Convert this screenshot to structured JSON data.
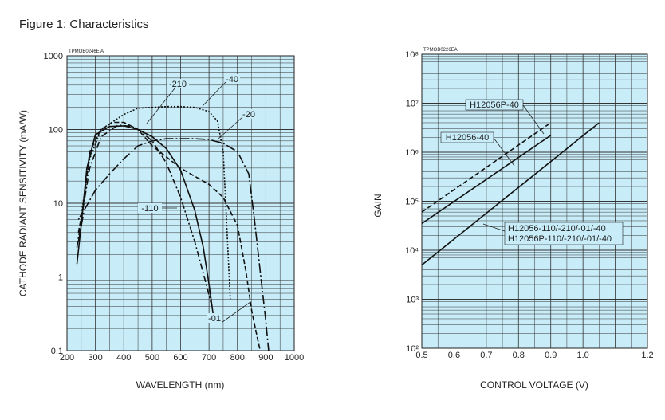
{
  "figure_title": "Figure 1: Characteristics",
  "chart_data": [
    {
      "type": "line",
      "code": "TPMOB0246E A",
      "xlabel": "WAVELENGTH (nm)",
      "ylabel": "CATHODE RADIANT SENSITIVITY (mA/W)",
      "xlim": [
        200,
        1000
      ],
      "ylim": [
        0.1,
        1000
      ],
      "yscale": "log",
      "grid": true,
      "background": "#c8ecf8",
      "x_ticks": [
        "200",
        "300",
        "400",
        "500",
        "600",
        "700",
        "800",
        "900",
        "1000"
      ],
      "y_ticks": [
        "0.1",
        "1",
        "10",
        "100",
        "1000"
      ],
      "series": [
        {
          "name": "-01",
          "style": "solid",
          "x": [
            235,
            250,
            270,
            300,
            350,
            400,
            450,
            500,
            550,
            600,
            650,
            680,
            700,
            715
          ],
          "y": [
            1.5,
            5,
            30,
            85,
            110,
            112,
            100,
            80,
            55,
            28,
            8,
            2.5,
            0.8,
            0.3
          ]
        },
        {
          "name": "-110",
          "style": "dashdot",
          "x": [
            235,
            250,
            280,
            320,
            380,
            430,
            450,
            500,
            550,
            600,
            650,
            690,
            710
          ],
          "y": [
            2.5,
            6,
            30,
            80,
            115,
            110,
            100,
            70,
            35,
            12,
            3,
            0.8,
            0.4
          ]
        },
        {
          "name": "-210",
          "style": "dashed",
          "x": [
            240,
            255,
            280,
            320,
            360,
            400,
            450,
            500,
            600,
            700,
            750,
            800,
            830,
            850,
            870,
            880
          ],
          "y": [
            4,
            8,
            50,
            100,
            125,
            125,
            100,
            60,
            30,
            18,
            12,
            5,
            1.2,
            0.35,
            0.15,
            0.1
          ]
        },
        {
          "name": "-40",
          "style": "dotted",
          "x": [
            240,
            250,
            280,
            320,
            400,
            450,
            500,
            550,
            600,
            650,
            700,
            730,
            750,
            760,
            770,
            775
          ],
          "y": [
            6,
            7,
            40,
            100,
            160,
            195,
            200,
            205,
            205,
            200,
            175,
            130,
            50,
            8,
            1.2,
            0.5
          ]
        },
        {
          "name": "-20",
          "style": "longdash-dot",
          "x": [
            240,
            260,
            300,
            350,
            400,
            450,
            500,
            550,
            600,
            650,
            700,
            750,
            800,
            840,
            860,
            880,
            900,
            910
          ],
          "y": [
            3,
            8,
            15,
            25,
            40,
            60,
            70,
            75,
            75,
            75,
            73,
            65,
            50,
            25,
            6,
            1.2,
            0.25,
            0.1
          ]
        }
      ]
    },
    {
      "type": "line",
      "code": "TPMOB0226EA",
      "xlabel": "CONTROL VOLTAGE (V)",
      "ylabel": "GAIN",
      "xlim": [
        0.5,
        1.2
      ],
      "ylim": [
        100,
        100000000
      ],
      "yscale": "log",
      "grid": true,
      "background": "#c8ecf8",
      "x_ticks": [
        "0.5",
        "0.6",
        "0.7",
        "0.8",
        "0.9",
        "1.0",
        "1.2"
      ],
      "y_ticks": [
        "10²",
        "10³",
        "10⁴",
        "10⁵",
        "10⁶",
        "10⁷",
        "10⁸"
      ],
      "series": [
        {
          "name": "H12056P-40",
          "style": "dashed",
          "x": [
            0.5,
            0.9
          ],
          "y": [
            60000,
            4000000
          ]
        },
        {
          "name": "H12056-40",
          "style": "solid",
          "x": [
            0.5,
            0.9
          ],
          "y": [
            35000,
            2200000
          ]
        },
        {
          "name": "H12056-110/-210/-01/-40",
          "style": "solid",
          "x": [
            0.5,
            1.05
          ],
          "y": [
            5000,
            4000000
          ]
        }
      ],
      "annotations": [
        "H12056-110/-210/-01/-40",
        "H12056P-110/-210/-01/-40"
      ]
    }
  ]
}
